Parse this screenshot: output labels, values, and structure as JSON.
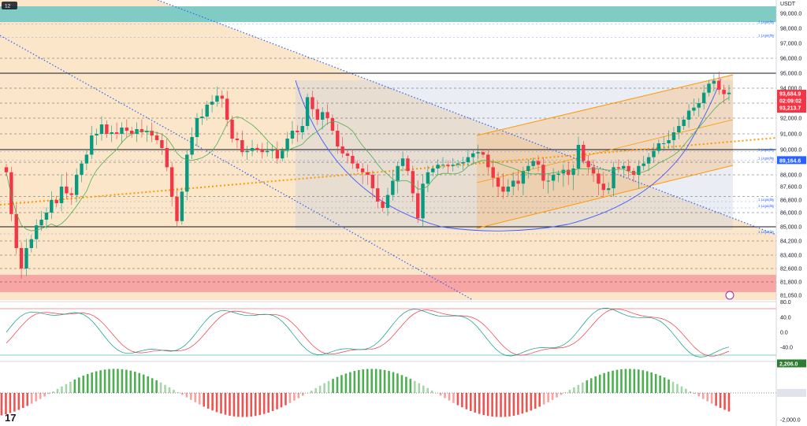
{
  "header": {
    "interval": "12",
    "currency": "USDT"
  },
  "chart_data": {
    "type": "candlestick",
    "price_axis": {
      "ticks": [
        "99,000.0",
        "98,000.0",
        "97,000.0",
        "96,000.0",
        "95,000.0",
        "94,000.0",
        "92,000.0",
        "91,000.0",
        "90,000.0",
        "88,000.0",
        "87,600.0",
        "86,800.0",
        "86,000.0",
        "85,000.0",
        "84,200.0",
        "83,400.0",
        "82,600.0",
        "81,800.0",
        "81,050.0"
      ],
      "tick_values": [
        99000,
        98000,
        97000,
        96000,
        95000,
        94000,
        92000,
        91000,
        90000,
        88000,
        87600,
        86800,
        86000,
        85000,
        84200,
        83400,
        82600,
        81800,
        81050
      ]
    },
    "price_tags": {
      "last": {
        "label": "93,684.9",
        "value": 93684.9
      },
      "countdown": {
        "label": "02:09:02"
      },
      "previous": {
        "label": "93,213.7",
        "value": 93213.7
      },
      "level": {
        "label": "89,164.6",
        "value": 89164.6
      }
    },
    "key_levels": [
      95000,
      90000,
      85000
    ],
    "dashed_levels": [
      96000,
      94000,
      93000,
      92000,
      91000,
      89000,
      88000,
      87000,
      86000,
      84200,
      83400,
      82600,
      81800
    ],
    "liquidity_labels": {
      "text": "1 Liquidity",
      "values": [
        98300,
        97400,
        89850,
        89150,
        86700,
        86300,
        84600
      ]
    },
    "zones": [
      {
        "name": "supply",
        "from": 98700,
        "to": 99600,
        "color": "#80cbc4"
      },
      {
        "name": "demand",
        "from": 81000,
        "to": 81800,
        "color": "#f8a5a5"
      }
    ],
    "candle_series": [
      88200,
      85900,
      83800,
      82600,
      83800,
      84300,
      85100,
      85500,
      86000,
      86800,
      86600,
      87600,
      87200,
      87100,
      88000,
      88900,
      89600,
      90900,
      91000,
      91600,
      91000,
      91100,
      91000,
      91400,
      91200,
      91000,
      91300,
      91100,
      91200,
      90900,
      90600,
      90100,
      88600,
      87000,
      85400,
      87300,
      89600,
      90800,
      92000,
      92100,
      92900,
      93100,
      93500,
      93300,
      91900,
      90700,
      90600,
      89800,
      89900,
      90100,
      90000,
      89800,
      89900,
      90000,
      89300,
      89900,
      90700,
      91200,
      91100,
      91500,
      93400,
      92600,
      91900,
      92400,
      92000,
      91200,
      90200,
      89700,
      89500,
      88900,
      88500,
      88200,
      88000,
      87500,
      86700,
      86300,
      87100,
      87800,
      88700,
      89300,
      88300,
      87200,
      85600,
      87700,
      88200,
      88500,
      88800,
      88800,
      88700,
      88800,
      88900,
      89000,
      89400,
      89700,
      89800,
      89600,
      88600,
      87900,
      87600,
      87300,
      87600,
      87800,
      87700,
      88300,
      88700,
      89100,
      88800,
      87800,
      87800,
      88000,
      88100,
      88400,
      88000,
      88500,
      90300,
      89100,
      88600,
      88100,
      87700,
      87400,
      87500,
      88600,
      88500,
      88700,
      88300,
      88000,
      88700,
      88900,
      89400,
      89900,
      90400,
      90400,
      90600,
      91100,
      91500,
      91900,
      92500,
      92700,
      93000,
      93700,
      94300,
      94500,
      93900,
      93600,
      93700
    ],
    "stochastic_rsi": {
      "ticks": [
        "80.0",
        "40.0",
        "0.0",
        "-40.0"
      ],
      "tick_values": [
        80,
        40,
        0,
        -40
      ]
    },
    "histogram": {
      "ticks": [
        "2,206.0",
        "0.0",
        "-2,000.0"
      ],
      "tick_values": [
        2206,
        0,
        -2000
      ],
      "last": "2,206.0"
    },
    "colors": {
      "up": "#089981",
      "down": "#f23645",
      "channel": "#ff9800",
      "trend": "#2962ff",
      "band": "#fbe3c4"
    }
  }
}
